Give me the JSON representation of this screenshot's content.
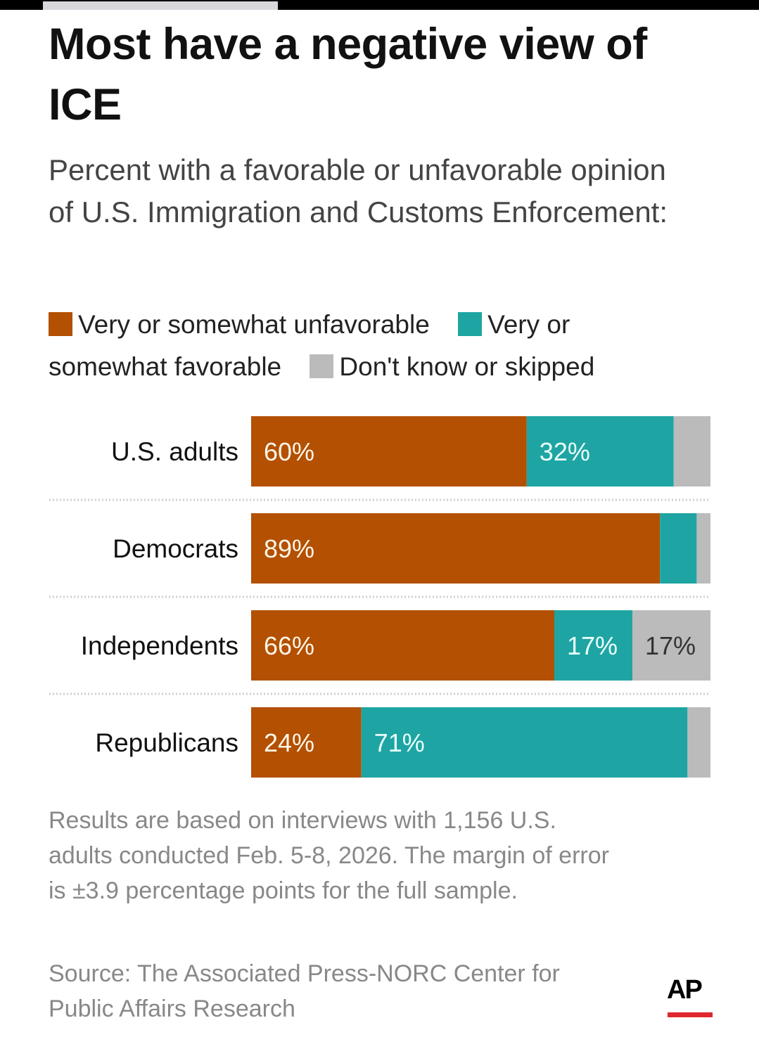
{
  "title": "Most have a negative view of ICE",
  "subtitle": "Percent with a favorable or unfavorable opinion of U.S. Immigration and Customs Enforcement:",
  "legend": [
    {
      "label": "Very or somewhat unfavorable",
      "color": "#b35002"
    },
    {
      "label": "Very or somewhat favorable",
      "color": "#1ea5a3"
    },
    {
      "label": "Don't know or skipped",
      "color": "#bbbbbb"
    }
  ],
  "chart_data": {
    "type": "bar",
    "orientation": "horizontal",
    "stacked": true,
    "title": "Most have a negative view of ICE",
    "subtitle": "Percent with a favorable or unfavorable opinion of U.S. Immigration and Customs Enforcement:",
    "categories": [
      "U.S. adults",
      "Democrats",
      "Independents",
      "Republicans"
    ],
    "series": [
      {
        "name": "Very or somewhat unfavorable",
        "color": "#b35002",
        "values": [
          60,
          89,
          66,
          24
        ],
        "labels": [
          "60%",
          "89%",
          "66%",
          "24%"
        ]
      },
      {
        "name": "Very or somewhat favorable",
        "color": "#1ea5a3",
        "values": [
          32,
          8,
          17,
          71
        ],
        "labels": [
          "32%",
          "",
          "17%",
          "71%"
        ]
      },
      {
        "name": "Don't know or skipped",
        "color": "#bbbbbb",
        "values": [
          8,
          3,
          17,
          5
        ],
        "labels": [
          "",
          "",
          "17%",
          ""
        ]
      }
    ],
    "xlim": [
      0,
      100
    ],
    "xlabel": "",
    "ylabel": "",
    "grid": false,
    "legend_position": "top"
  },
  "footnote": "Results are based on interviews with 1,156 U.S. adults conducted Feb. 5-8, 2026. The margin of error is ±3.9 percentage points for the full sample.",
  "source": "Source: The Associated Press-NORC Center for Public Affairs Research",
  "logo": {
    "text": "AP",
    "accent_color": "#e0272d"
  }
}
